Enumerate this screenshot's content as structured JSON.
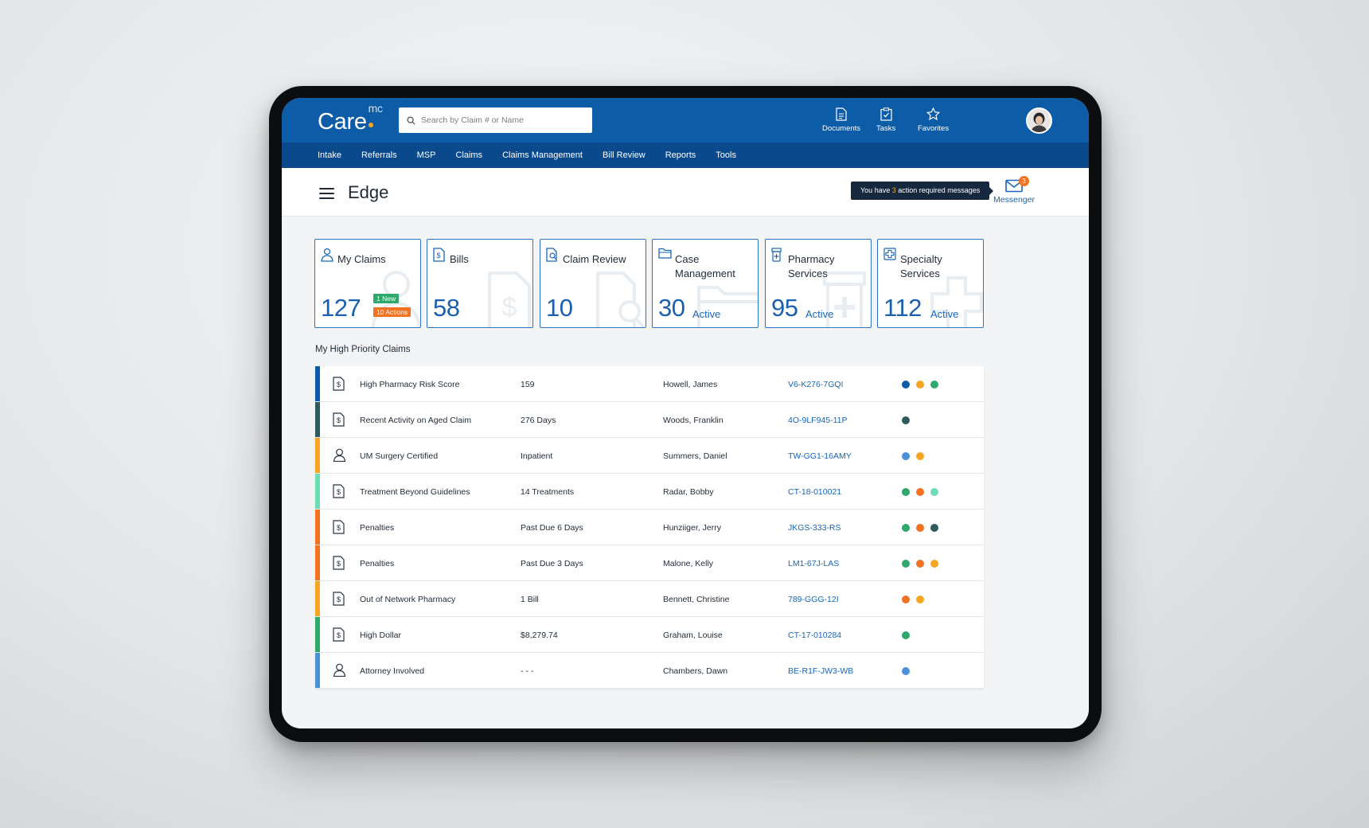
{
  "header": {
    "logo_text": "Care",
    "logo_sup": "mc",
    "search_placeholder": "Search by Claim # or Name",
    "documents_label": "Documents",
    "tasks_label": "Tasks",
    "favorites_label": "Favorites"
  },
  "nav": [
    "Intake",
    "Referrals",
    "MSP",
    "Claims",
    "Claims Management",
    "Bill Review",
    "Reports",
    "Tools"
  ],
  "page": {
    "title": "Edge",
    "tooltip_pre": "You have ",
    "tooltip_count": "3",
    "tooltip_post": " action required messages",
    "messenger_label": "Messenger",
    "messenger_badge": "3"
  },
  "cards": {
    "my_claims": {
      "title": "My Claims",
      "value": "127",
      "tag_new": "1 New",
      "tag_actions": "10 Actions"
    },
    "bills": {
      "title": "Bills",
      "value": "58"
    },
    "claim_review": {
      "title": "Claim Review",
      "value": "10"
    },
    "case_management": {
      "title": "Case Management",
      "value": "30",
      "sub": "Active"
    },
    "pharmacy_services": {
      "title": "Pharmacy Services",
      "value": "95",
      "sub": "Active"
    },
    "specialty_services": {
      "title": "Specialty Services",
      "value": "112",
      "sub": "Active"
    }
  },
  "section_title": "My High Priority Claims",
  "rows": [
    {
      "icon": "dollar-document-icon",
      "accent": "#0d5ca8",
      "name": "High Pharmacy Risk Score",
      "detail": "159",
      "claimant": "Howell, James",
      "claim": "V6-K276-7GQI",
      "dots": [
        "#0d5ca8",
        "#f6a623",
        "#2ea96b"
      ]
    },
    {
      "icon": "dollar-document-icon",
      "accent": "#2e5b5b",
      "name": "Recent Activity on Aged Claim",
      "detail": "276 Days",
      "claimant": "Woods, Franklin",
      "claim": "4O-9LF945-11P",
      "dots": [
        "#2e5b5b"
      ]
    },
    {
      "icon": "person-icon",
      "accent": "#f6a623",
      "name": "UM Surgery Certified",
      "detail": "Inpatient",
      "claimant": "Summers, Daniel",
      "claim": "TW-GG1-16AMY",
      "dots": [
        "#4a90d9",
        "#f6a623"
      ]
    },
    {
      "icon": "dollar-document-icon",
      "accent": "#6fdcb4",
      "name": "Treatment Beyond Guidelines",
      "detail": "14 Treatments",
      "claimant": "Radar, Bobby",
      "claim": "CT-18-010021",
      "dots": [
        "#2ea96b",
        "#f07222",
        "#6fdcb4"
      ]
    },
    {
      "icon": "dollar-document-icon",
      "accent": "#f07222",
      "name": "Penalties",
      "detail": "Past Due 6 Days",
      "claimant": "Hunziiger, Jerry",
      "claim": "JKGS-333-RS",
      "dots": [
        "#2ea96b",
        "#f07222",
        "#2e5b5b"
      ]
    },
    {
      "icon": "dollar-document-icon",
      "accent": "#f07222",
      "name": "Penalties",
      "detail": "Past Due 3 Days",
      "claimant": "Malone, Kelly",
      "claim": "LM1-67J-LAS",
      "dots": [
        "#2ea96b",
        "#f07222",
        "#f6a623"
      ]
    },
    {
      "icon": "dollar-document-icon",
      "accent": "#f6a623",
      "name": "Out of Network Pharmacy",
      "detail": "1 Bill",
      "claimant": "Bennett, Christine",
      "claim": "789-GGG-12I",
      "dots": [
        "#f07222",
        "#f6a623"
      ]
    },
    {
      "icon": "dollar-document-icon",
      "accent": "#2ea96b",
      "name": "High Dollar",
      "detail": "$8,279.74",
      "claimant": "Graham, Louise",
      "claim": "CT-17-010284",
      "dots": [
        "#2ea96b"
      ]
    },
    {
      "icon": "person-icon",
      "accent": "#4a90d9",
      "name": "Attorney Involved",
      "detail": "- - -",
      "claimant": "Chambers, Dawn",
      "claim": "BE-R1F-JW3-WB",
      "dots": [
        "#4a90d9"
      ]
    }
  ]
}
